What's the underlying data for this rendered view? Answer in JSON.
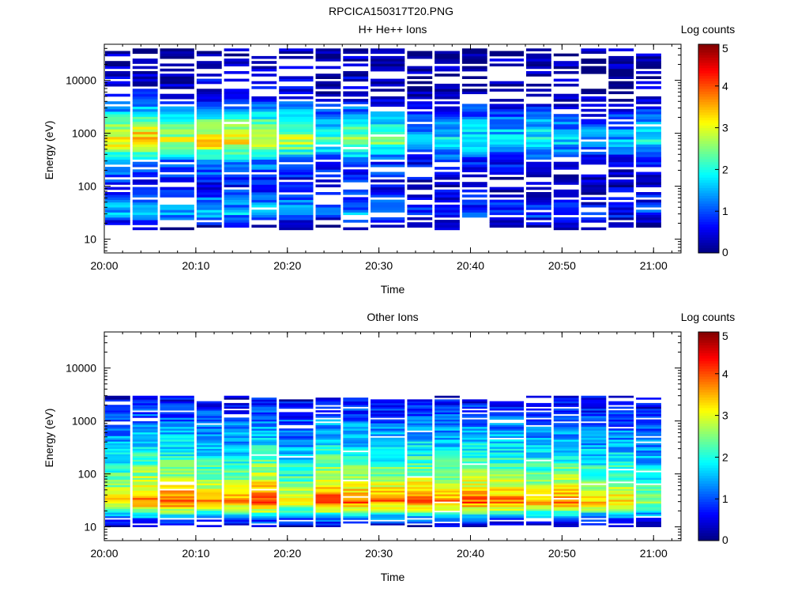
{
  "figure_title": "RPCICA150317T20.PNG",
  "colorbar": {
    "label": "Log counts",
    "ticks": [
      "0",
      "1",
      "2",
      "3",
      "4",
      "5"
    ],
    "range": [
      0,
      5
    ],
    "colormap": "jet"
  },
  "chart_data": [
    {
      "type": "heatmap",
      "title": "H+ He++ Ions",
      "xlabel": "Time",
      "ylabel": "Energy (eV)",
      "yscale": "log",
      "ylim": [
        5.5,
        48000
      ],
      "xlim": [
        "20:00",
        "21:03"
      ],
      "x_tick_labels": [
        "20:00",
        "20:10",
        "20:20",
        "20:30",
        "20:40",
        "20:50",
        "21:00"
      ],
      "y_tick_labels": [
        "10",
        "100",
        "1000",
        "10000"
      ],
      "time_bins": [
        "20:00",
        "20:03",
        "20:06",
        "20:10",
        "20:13",
        "20:16",
        "20:19",
        "20:23",
        "20:26",
        "20:29",
        "20:33",
        "20:36",
        "20:39",
        "20:42",
        "20:46",
        "20:49",
        "20:52",
        "20:55",
        "20:58"
      ],
      "log_counts_profile": [
        {
          "energy_ev": 15,
          "value": 0.0
        },
        {
          "energy_ev": 25,
          "value": 1.0
        },
        {
          "energy_ev": 30,
          "value": 1.6
        },
        {
          "energy_ev": 50,
          "value": 1.2
        },
        {
          "energy_ev": 100,
          "value": 0.6
        },
        {
          "energy_ev": 300,
          "value": 1.3
        },
        {
          "energy_ev": 700,
          "value": 3.3
        },
        {
          "energy_ev": 1500,
          "value": 2.4
        },
        {
          "energy_ev": 5000,
          "value": 0.5
        },
        {
          "energy_ev": 40000,
          "value": 0.2
        }
      ],
      "bin_profile_scale": [
        1.0,
        1.1,
        0.9,
        1.05,
        1.0,
        1.0,
        0.9,
        0.7,
        0.85,
        0.75,
        0.5,
        0.55,
        0.6,
        0.55,
        0.6,
        0.5,
        0.45,
        0.45,
        0.6
      ]
    },
    {
      "type": "heatmap",
      "title": "Other Ions",
      "xlabel": "Time",
      "ylabel": "Energy (eV)",
      "yscale": "log",
      "ylim": [
        5.5,
        48000
      ],
      "xlim": [
        "20:00",
        "21:03"
      ],
      "x_tick_labels": [
        "20:00",
        "20:10",
        "20:20",
        "20:30",
        "20:40",
        "20:50",
        "21:00"
      ],
      "y_tick_labels": [
        "10",
        "100",
        "1000",
        "10000"
      ],
      "time_bins": [
        "20:00",
        "20:03",
        "20:06",
        "20:10",
        "20:13",
        "20:16",
        "20:19",
        "20:23",
        "20:26",
        "20:29",
        "20:33",
        "20:36",
        "20:39",
        "20:42",
        "20:46",
        "20:49",
        "20:52",
        "20:55",
        "20:58"
      ],
      "log_counts_profile": [
        {
          "energy_ev": 10,
          "value": 0.3
        },
        {
          "energy_ev": 15,
          "value": 1.3
        },
        {
          "energy_ev": 20,
          "value": 2.6
        },
        {
          "energy_ev": 30,
          "value": 4.0
        },
        {
          "energy_ev": 50,
          "value": 3.3
        },
        {
          "energy_ev": 100,
          "value": 2.6
        },
        {
          "energy_ev": 300,
          "value": 1.8
        },
        {
          "energy_ev": 1000,
          "value": 1.2
        },
        {
          "energy_ev": 3000,
          "value": 0.5
        }
      ],
      "bin_profile_scale": [
        0.85,
        1.0,
        1.0,
        0.9,
        0.9,
        1.05,
        0.8,
        1.05,
        1.0,
        0.95,
        1.0,
        0.95,
        1.0,
        0.95,
        0.9,
        0.95,
        0.85,
        0.85,
        0.7
      ]
    }
  ]
}
